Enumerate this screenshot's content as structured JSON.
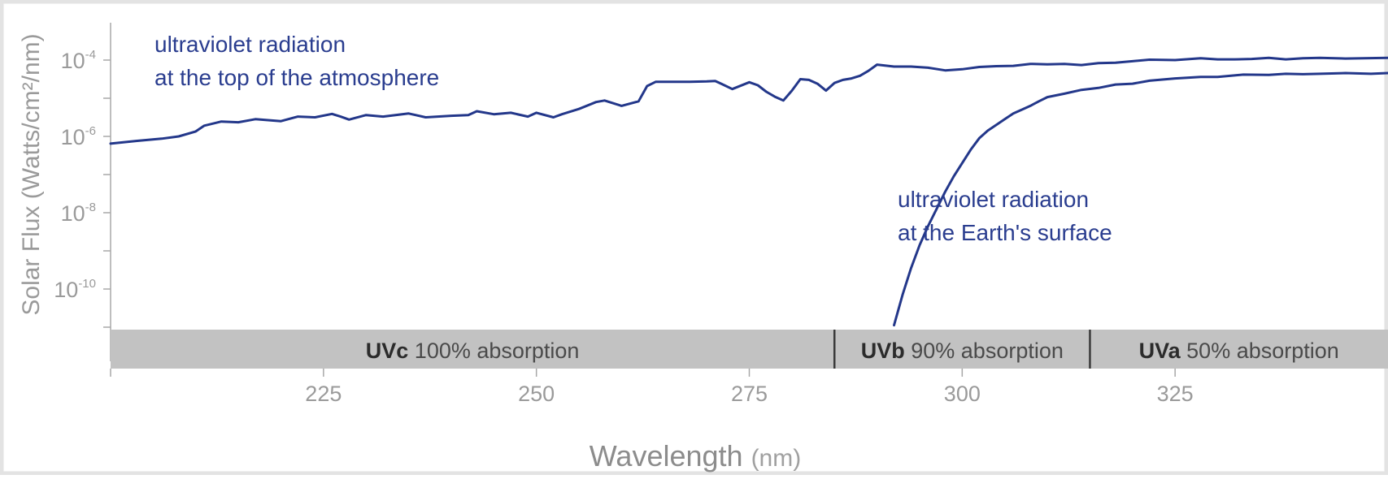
{
  "chart_data": {
    "type": "line",
    "xlabel": "Wavelength",
    "xlabel_unit": "(nm)",
    "ylabel": "Solar Flux (Watts/cm²/nm)",
    "y_scale": "log",
    "xlim": [
      200,
      350
    ],
    "ylim_exponent": [
      -11,
      -3.5
    ],
    "x_ticks": [
      "225",
      "250",
      "275",
      "300",
      "325"
    ],
    "x_tick_values": [
      225,
      250,
      275,
      300,
      325
    ],
    "y_ticks": [
      {
        "base": "10",
        "exp": "-4"
      },
      {
        "base": "10",
        "exp": "-6"
      },
      {
        "base": "10",
        "exp": "-8"
      },
      {
        "base": "10",
        "exp": "-10"
      }
    ],
    "y_tick_exponents": [
      -4,
      -6,
      -8,
      -10
    ],
    "bands": [
      {
        "name": "UVc",
        "text": " 100% absorption",
        "from": 200,
        "to": 285
      },
      {
        "name": "UVb",
        "text": " 90% absorption",
        "from": 285,
        "to": 315
      },
      {
        "name": "UVa",
        "text": " 50% absorption",
        "from": 315,
        "to": 350
      }
    ],
    "series": [
      {
        "annotation": [
          "ultraviolet radiation",
          "at the top of the atmosphere"
        ],
        "color": "#23378a",
        "x": [
          200,
          203,
          206,
          208,
          210,
          211,
          213,
          215,
          217,
          220,
          222,
          224,
          226,
          227,
          228,
          230,
          232,
          235,
          237,
          240,
          242,
          243,
          245,
          247,
          249,
          250,
          252,
          253,
          255,
          257,
          258,
          260,
          262,
          263,
          264,
          265,
          268,
          270,
          271,
          272,
          273,
          275,
          276,
          277,
          278,
          279,
          280,
          281,
          282,
          283,
          284,
          285,
          286,
          287,
          288,
          289,
          290,
          292,
          294,
          296,
          298,
          300,
          302,
          304,
          306,
          308,
          310,
          312,
          314,
          316,
          318,
          320,
          322,
          325,
          328,
          330,
          332,
          334,
          336,
          338,
          340,
          342,
          345,
          350
        ],
        "exp": [
          -6.19,
          -6.12,
          -6.06,
          -6.0,
          -5.87,
          -5.72,
          -5.61,
          -5.63,
          -5.55,
          -5.6,
          -5.48,
          -5.5,
          -5.41,
          -5.48,
          -5.56,
          -5.44,
          -5.48,
          -5.4,
          -5.5,
          -5.46,
          -5.44,
          -5.34,
          -5.42,
          -5.38,
          -5.48,
          -5.38,
          -5.5,
          -5.42,
          -5.28,
          -5.1,
          -5.06,
          -5.2,
          -5.08,
          -4.68,
          -4.57,
          -4.57,
          -4.57,
          -4.56,
          -4.55,
          -4.65,
          -4.76,
          -4.58,
          -4.66,
          -4.83,
          -4.96,
          -5.06,
          -4.8,
          -4.5,
          -4.52,
          -4.62,
          -4.8,
          -4.6,
          -4.52,
          -4.48,
          -4.41,
          -4.28,
          -4.12,
          -4.17,
          -4.17,
          -4.2,
          -4.27,
          -4.24,
          -4.18,
          -4.16,
          -4.15,
          -4.1,
          -4.11,
          -4.1,
          -4.13,
          -4.08,
          -4.07,
          -4.03,
          -3.99,
          -4.0,
          -3.95,
          -3.98,
          -3.98,
          -3.97,
          -3.94,
          -3.98,
          -3.95,
          -3.94,
          -3.96,
          -3.94
        ]
      },
      {
        "annotation": [
          "ultraviolet radiation",
          "at the Earth's surface"
        ],
        "color": "#23378a",
        "x": [
          292,
          293,
          294,
          295,
          296,
          297,
          298,
          299,
          300,
          301,
          302,
          303,
          304,
          305,
          306,
          307,
          308,
          309,
          310,
          312,
          314,
          316,
          318,
          320,
          322,
          325,
          328,
          330,
          333,
          336,
          338,
          340,
          342,
          345,
          348,
          350
        ],
        "exp": [
          -10.95,
          -10.15,
          -9.45,
          -8.85,
          -8.35,
          -7.9,
          -7.45,
          -7.05,
          -6.7,
          -6.35,
          -6.05,
          -5.85,
          -5.7,
          -5.55,
          -5.4,
          -5.3,
          -5.2,
          -5.08,
          -4.97,
          -4.88,
          -4.78,
          -4.73,
          -4.64,
          -4.62,
          -4.54,
          -4.48,
          -4.44,
          -4.44,
          -4.38,
          -4.39,
          -4.36,
          -4.37,
          -4.36,
          -4.34,
          -4.36,
          -4.34
        ]
      }
    ]
  }
}
